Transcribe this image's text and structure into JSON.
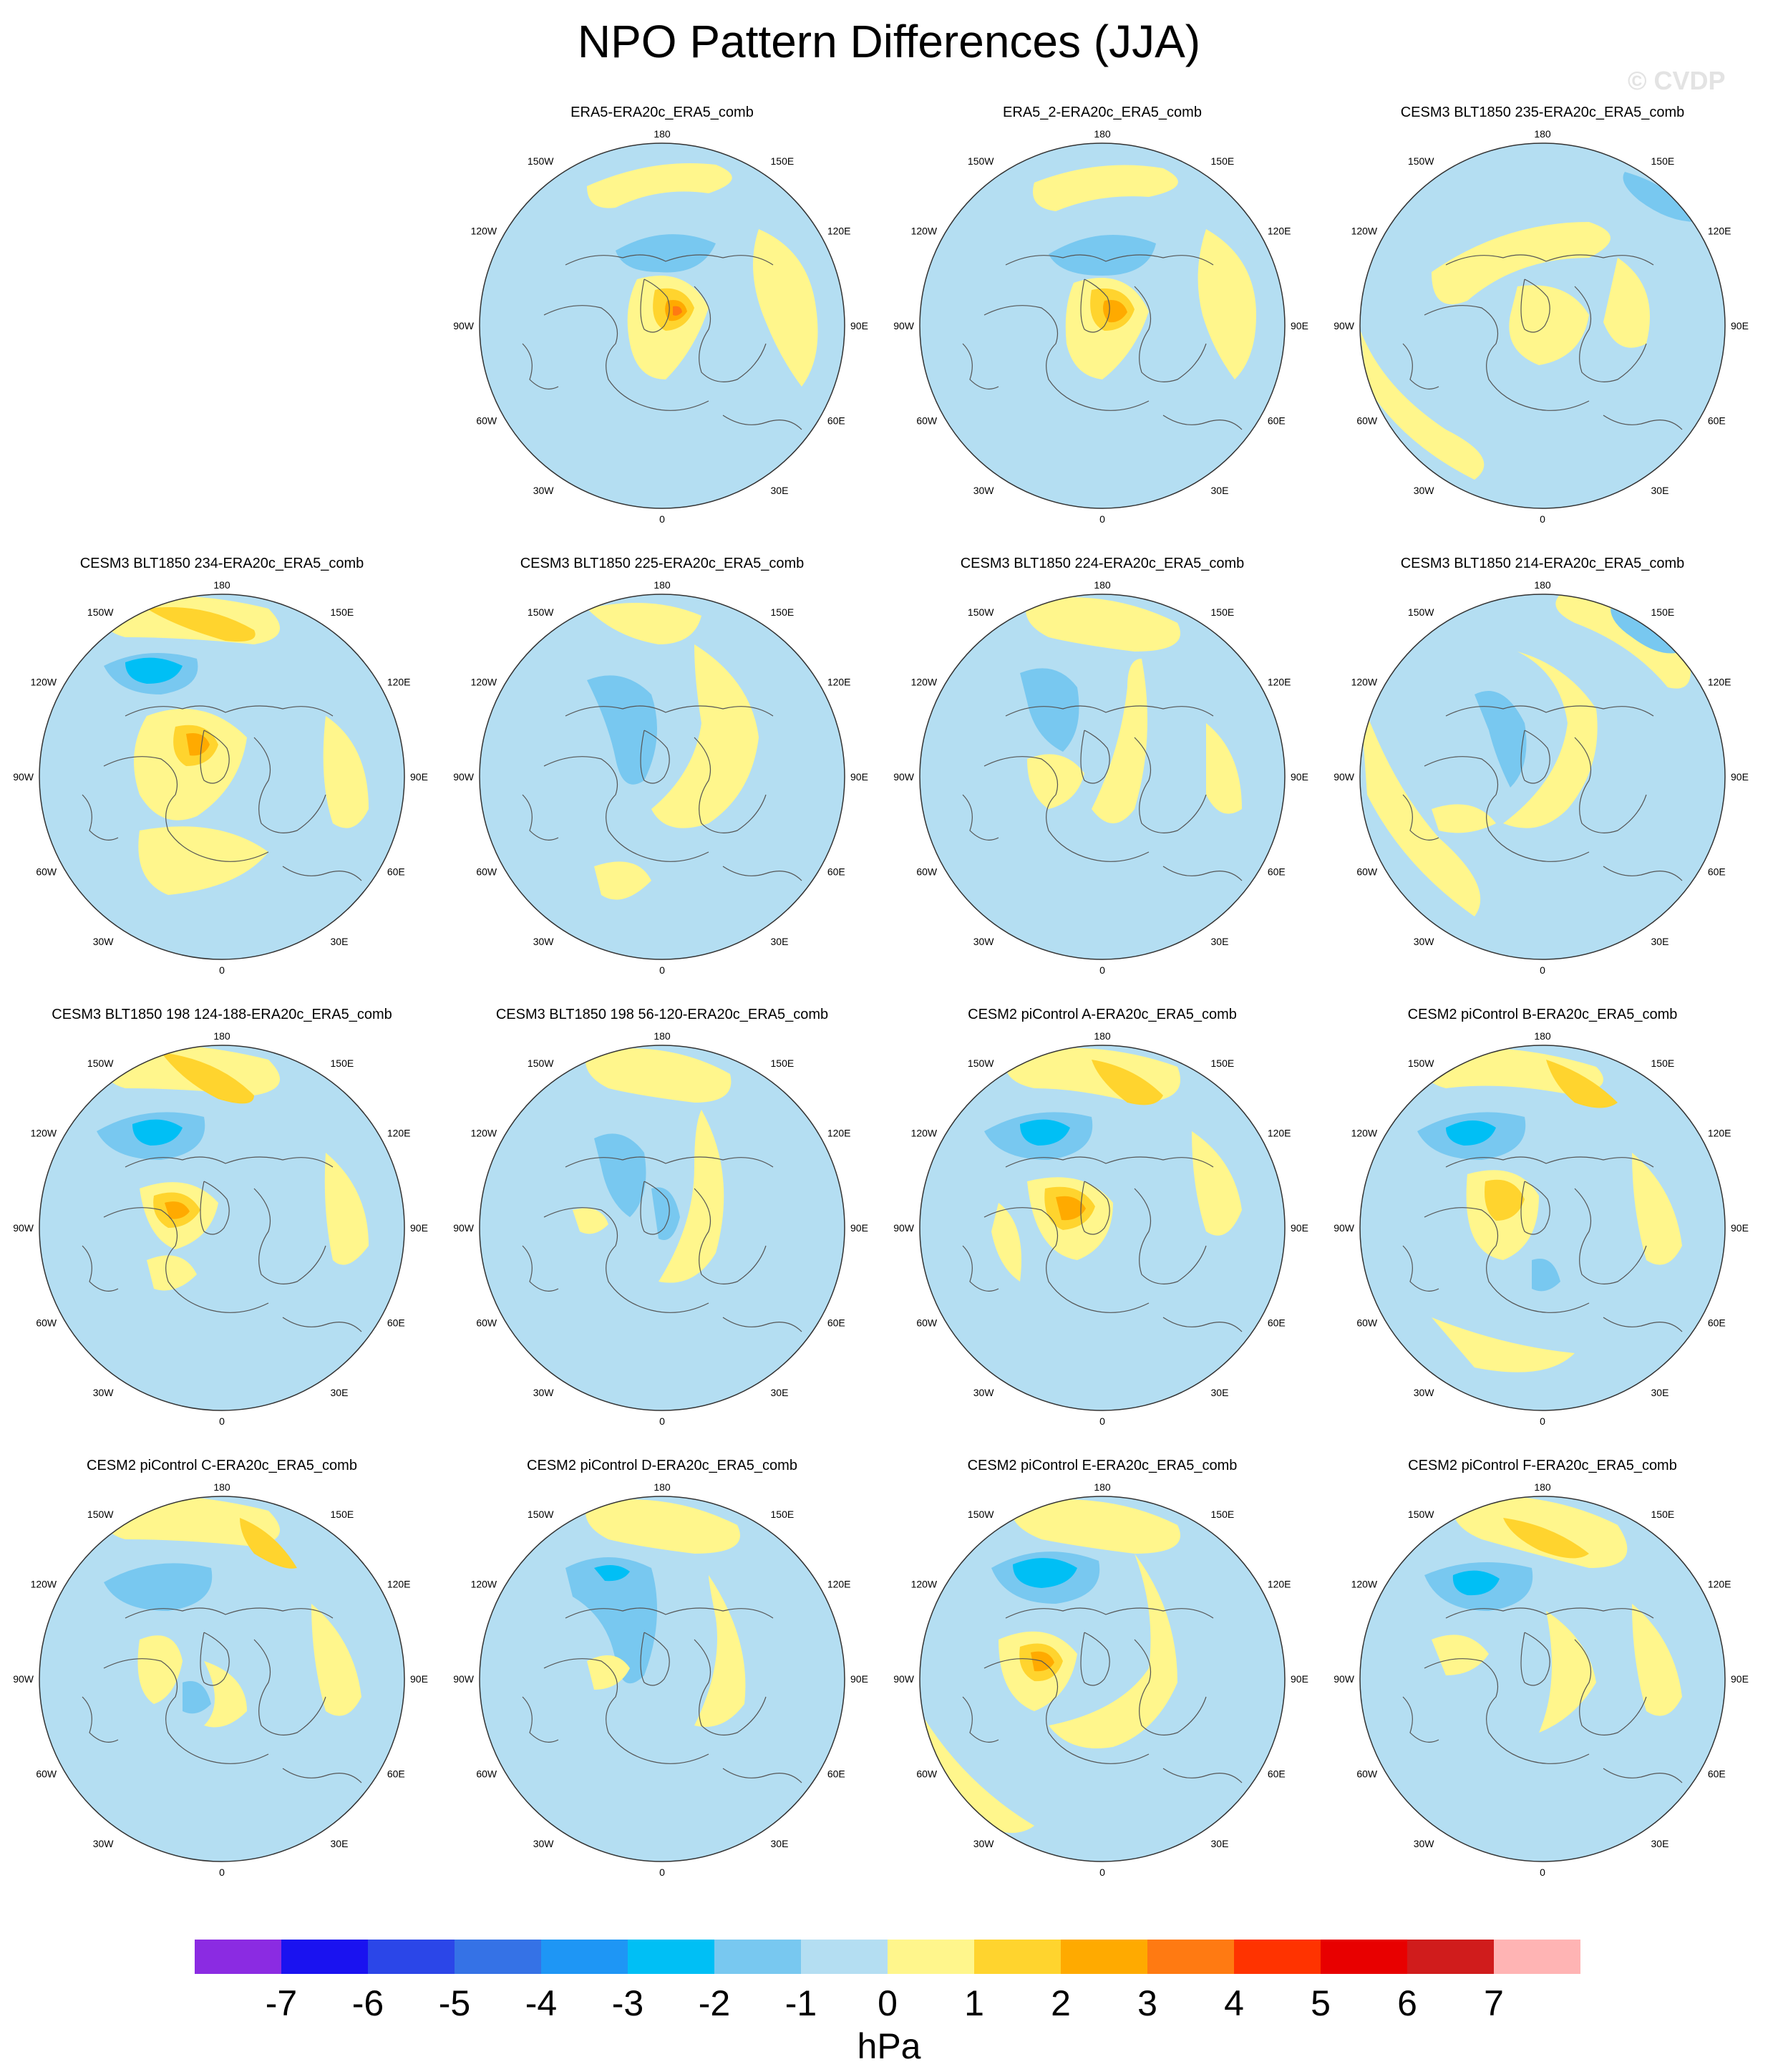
{
  "title": "NPO Pattern Differences (JJA)",
  "watermark": "© CVDP",
  "lon_labels": {
    "top": "180",
    "bottom": "0",
    "left_upper": "150W",
    "left_mid_upper": "120W",
    "left_mid": "90W",
    "left_mid_lower": "60W",
    "left_lower": "30W",
    "right_upper": "150E",
    "right_mid_upper": "120E",
    "right_mid": "90E",
    "right_mid_lower": "60E",
    "right_lower": "30E"
  },
  "panels": [
    {
      "title": "ERA5-ERA20c_ERA5_comb"
    },
    {
      "title": "ERA5_2-ERA20c_ERA5_comb"
    },
    {
      "title": "CESM3 BLT1850 235-ERA20c_ERA5_comb"
    },
    {
      "title": "CESM3 BLT1850 234-ERA20c_ERA5_comb"
    },
    {
      "title": "CESM3 BLT1850 225-ERA20c_ERA5_comb"
    },
    {
      "title": "CESM3 BLT1850 224-ERA20c_ERA5_comb"
    },
    {
      "title": "CESM3 BLT1850 214-ERA20c_ERA5_comb"
    },
    {
      "title": "CESM3 BLT1850 198 124-188-ERA20c_ERA5_comb"
    },
    {
      "title": "CESM3 BLT1850 198 56-120-ERA20c_ERA5_comb"
    },
    {
      "title": "CESM2 piControl A-ERA20c_ERA5_comb"
    },
    {
      "title": "CESM2 piControl B-ERA20c_ERA5_comb"
    },
    {
      "title": "CESM2 piControl C-ERA20c_ERA5_comb"
    },
    {
      "title": "CESM2 piControl D-ERA20c_ERA5_comb"
    },
    {
      "title": "CESM2 piControl E-ERA20c_ERA5_comb"
    },
    {
      "title": "CESM2 piControl F-ERA20c_ERA5_comb"
    }
  ],
  "colorbar": {
    "units": "hPa",
    "labels": [
      "-7",
      "-6",
      "-5",
      "-4",
      "-3",
      "-2",
      "-1",
      "0",
      "1",
      "2",
      "3",
      "4",
      "5",
      "6",
      "7"
    ],
    "colors": [
      "#8b2be2",
      "#1a12f0",
      "#2b46e8",
      "#3572e6",
      "#1e96f5",
      "#00bff5",
      "#78c8f0",
      "#b4def2",
      "#fff68c",
      "#ffd42e",
      "#ffaa00",
      "#ff7a12",
      "#ff3300",
      "#e80000",
      "#d01c1c",
      "#ffb4b4"
    ]
  },
  "map_colors": {
    "ocean_neutral": "#b4def2",
    "pos1": "#fff68c",
    "pos2": "#ffd42e",
    "pos3": "#ffaa00",
    "pos4": "#ff7a12",
    "neg1": "#78c8f0",
    "neg2": "#00bff5",
    "neg3": "#1e96f5"
  }
}
